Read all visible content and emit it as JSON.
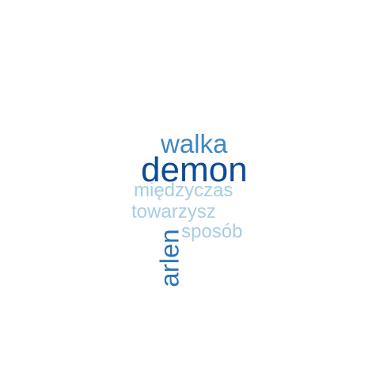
{
  "words": [
    {
      "text": "walka",
      "color": "#3f87c2"
    },
    {
      "text": "demon",
      "color": "#0d4a93"
    },
    {
      "text": "międzyczas",
      "color": "#a7cde3"
    },
    {
      "text": "towarzysz",
      "color": "#a7cde3"
    },
    {
      "text": "sposób",
      "color": "#a7cde3"
    },
    {
      "text": "arlen",
      "color": "#2c73b6"
    }
  ]
}
